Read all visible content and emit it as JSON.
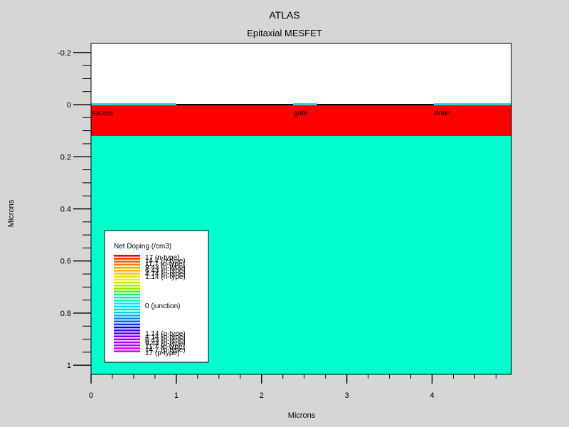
{
  "title": "ATLAS",
  "subtitle": "Epitaxial MESFET",
  "chart_data": {
    "type": "heatmap",
    "xlabel": "Microns",
    "ylabel": "Microns",
    "xlim": [
      0,
      4.93
    ],
    "ylim": [
      -0.235,
      1.035
    ],
    "y_inverted": true,
    "x_ticks": [
      0,
      1,
      2,
      3,
      4
    ],
    "y_ticks": [
      -0.2,
      0,
      0.2,
      0.4,
      0.6,
      0.8,
      1
    ],
    "y_tick_labels": [
      "-0.2",
      "0",
      "0.2",
      "0.4",
      "0.6",
      "0.8",
      "1"
    ],
    "regions": [
      {
        "name": "air",
        "x": [
          0,
          4.93
        ],
        "y": [
          -0.235,
          0
        ],
        "color": "#ffffff"
      },
      {
        "name": "n-type epitaxial layer",
        "x": [
          0,
          4.93
        ],
        "y": [
          0,
          0.12
        ],
        "color": "#ff0000"
      },
      {
        "name": "substrate",
        "x": [
          0,
          4.93
        ],
        "y": [
          0.12,
          1.035
        ],
        "color": "#00ffcc"
      }
    ],
    "contacts": [
      {
        "label": "source",
        "x": [
          0,
          1.0
        ]
      },
      {
        "label": "gate",
        "x": [
          2.37,
          2.65
        ]
      },
      {
        "label": "drain",
        "x": [
          4.02,
          4.93
        ]
      }
    ],
    "legend": {
      "title": "Net Doping (/cm3)",
      "position": "bottom-left",
      "colors": [
        "#ee0000",
        "#ee3300",
        "#ee6600",
        "#ee8800",
        "#eeaa00",
        "#eebb00",
        "#eecc00",
        "#eedd00",
        "#eeee00",
        "#ccee00",
        "#aaee00",
        "#88ee00",
        "#55ee22",
        "#22ee77",
        "#00eeaa",
        "#00eecc",
        "#00eedd",
        "#00e8e8",
        "#00dddd",
        "#00ccee",
        "#00aaee",
        "#0088ee",
        "#0066ee",
        "#0033ee",
        "#0000ee",
        "#3300ee",
        "#5500ee",
        "#7700ee",
        "#9900ee",
        "#aa00ee",
        "#bb00ee",
        "#cc00ee",
        "#dd00ee"
      ],
      "labels_top": [
        "17 (n-type)",
        "14.7 (n-type)",
        "11.7 (n-type)",
        "9.43 (n-type)",
        "6.43 (n-type)",
        "4.14 (n-type)",
        "1.14 (n-type)"
      ],
      "label_mid": "0 (junction)",
      "labels_bottom": [
        "1.14 (p-type)",
        "4.14 (p-type)",
        "6.43 (p-type)",
        "9.43 (p-type)",
        "11.7 (p-type)",
        "14.7 (p-type)",
        "17 (p-type)"
      ]
    }
  }
}
